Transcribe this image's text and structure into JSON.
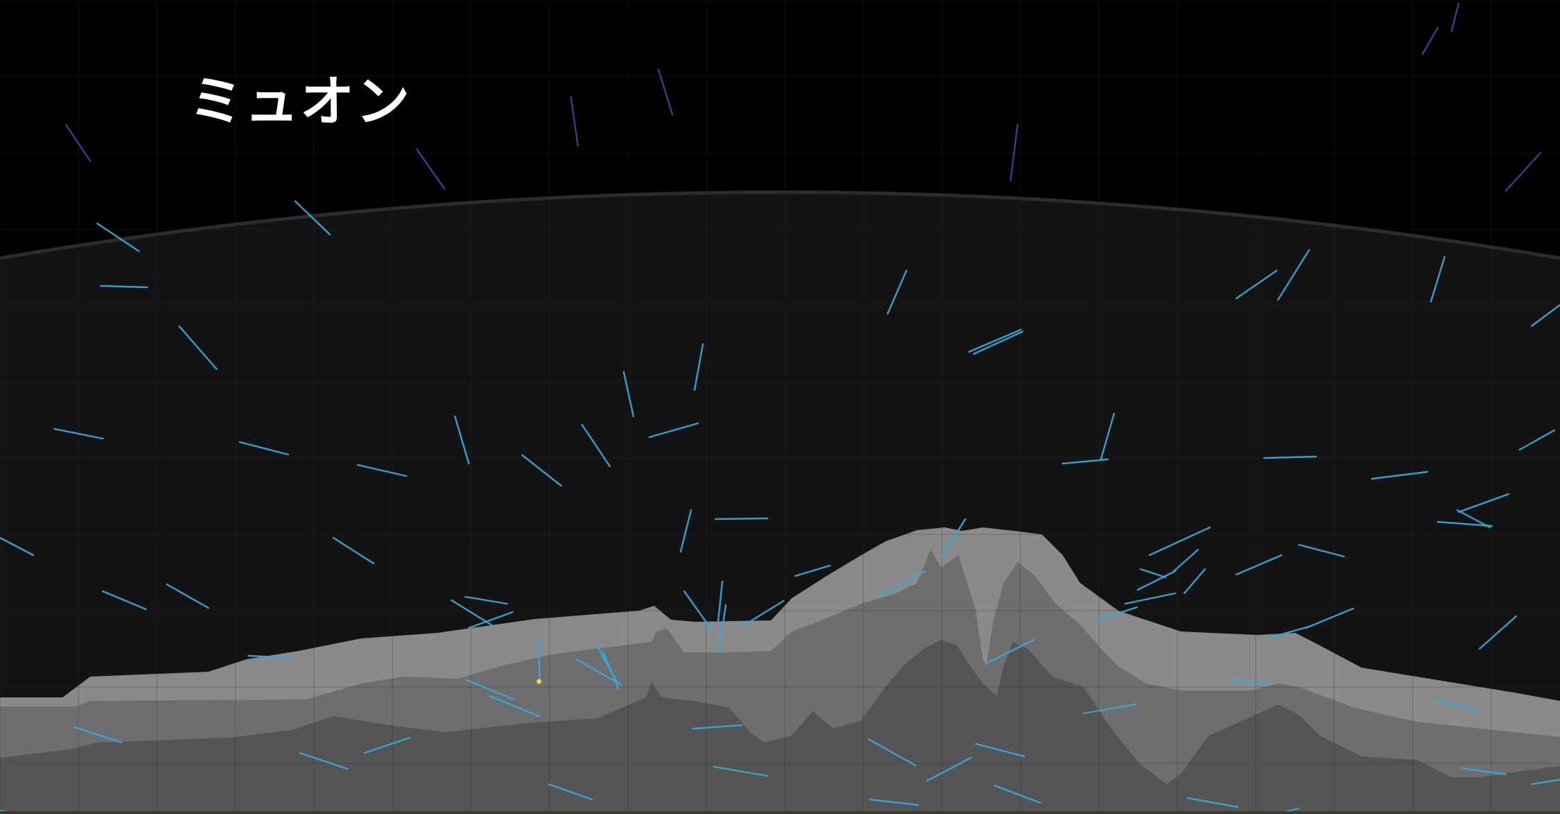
{
  "scene": {
    "title": "ミュオン",
    "colors": {
      "space": "#000000",
      "atmosphere": "#131313",
      "horizon_line": "#2c2c2c",
      "grid": "#2a2a2a",
      "mountain_outer": "#8a8a8a",
      "mountain_middle": "#6e6e6e",
      "mountain_core": "#555555",
      "muon_track_upper": "#2f4f9e",
      "muon_track_lower": "#36a9d6",
      "detection_point": "#f2d15a"
    }
  }
}
